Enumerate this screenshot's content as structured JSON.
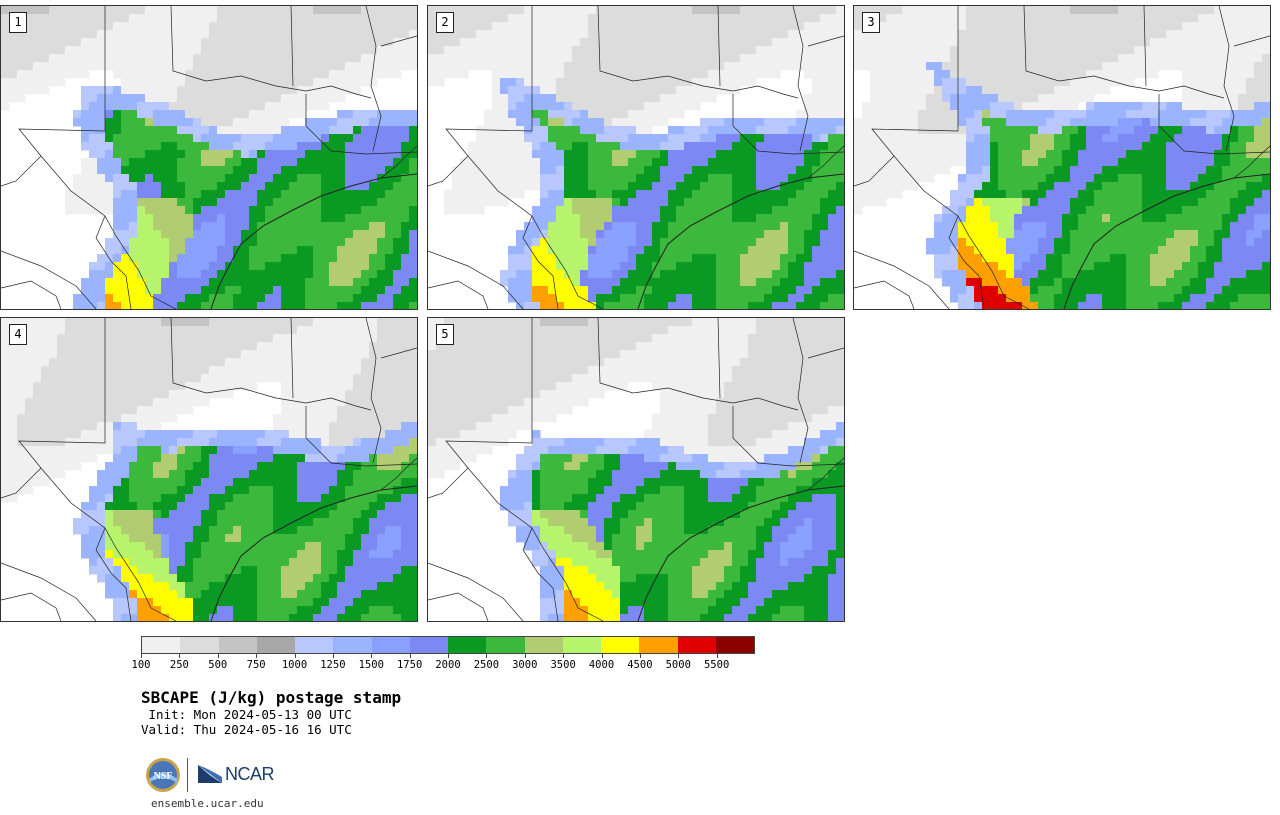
{
  "panels": [
    {
      "label": "1",
      "variant": 1
    },
    {
      "label": "2",
      "variant": 2
    },
    {
      "label": "3",
      "variant": 3
    },
    {
      "label": "4",
      "variant": 4
    },
    {
      "label": "5",
      "variant": 5
    }
  ],
  "colorbar": {
    "colors": [
      "#f0f0f0",
      "#dcdcdc",
      "#c4c4c4",
      "#a8a8a8",
      "#b8c8ff",
      "#9ab4ff",
      "#8aa0ff",
      "#7c88f4",
      "#0a9a24",
      "#3cb83c",
      "#b2cc72",
      "#b6f46c",
      "#ffff00",
      "#ffa000",
      "#e00000",
      "#8c0000"
    ],
    "tick_labels": [
      "100",
      "250",
      "500",
      "750",
      "1000",
      "1250",
      "1500",
      "1750",
      "2000",
      "2500",
      "3000",
      "3500",
      "4000",
      "4500",
      "5000",
      "5500"
    ]
  },
  "title": "SBCAPE (J/kg) postage stamp",
  "init": " Init: Mon 2024-05-13 00 UTC",
  "valid": "Valid: Thu 2024-05-16 16 UTC",
  "logos": {
    "nsf": "NSF",
    "ncar": "NCAR"
  },
  "website": "ensemble.ucar.edu"
}
